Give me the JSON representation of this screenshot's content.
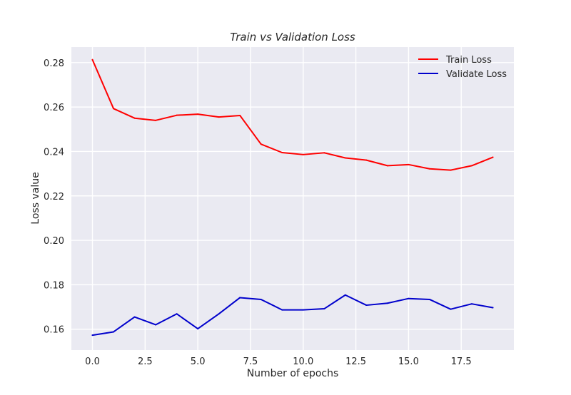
{
  "chart_data": {
    "type": "line",
    "title": "Train vs Validation Loss",
    "xlabel": "Number of epochs",
    "ylabel": "Loss value",
    "x": [
      0,
      1,
      2,
      3,
      4,
      5,
      6,
      7,
      8,
      9,
      10,
      11,
      12,
      13,
      14,
      15,
      16,
      17,
      18,
      19
    ],
    "series": [
      {
        "name": "Train Loss",
        "color": "#ff0000",
        "values": [
          0.2813,
          0.2593,
          0.255,
          0.254,
          0.2563,
          0.2568,
          0.2555,
          0.2562,
          0.2433,
          0.2395,
          0.2386,
          0.2394,
          0.2371,
          0.2361,
          0.2336,
          0.2341,
          0.2322,
          0.2316,
          0.2336,
          0.2374
        ]
      },
      {
        "name": "Validate Loss",
        "color": "#0000cc",
        "values": [
          0.1573,
          0.1588,
          0.1655,
          0.162,
          0.1669,
          0.1602,
          0.1669,
          0.1742,
          0.1734,
          0.1687,
          0.1687,
          0.1692,
          0.1754,
          0.1708,
          0.1717,
          0.1738,
          0.1734,
          0.169,
          0.1714,
          0.1697
        ]
      }
    ],
    "xlim": [
      -1.0,
      20.0
    ],
    "ylim": [
      0.1506,
      0.287
    ],
    "xticks": [
      0.0,
      2.5,
      5.0,
      7.5,
      10.0,
      12.5,
      15.0,
      17.5
    ],
    "xtick_labels": [
      "0.0",
      "2.5",
      "5.0",
      "7.5",
      "10.0",
      "12.5",
      "15.0",
      "17.5"
    ],
    "yticks": [
      0.16,
      0.18,
      0.2,
      0.22,
      0.24,
      0.26,
      0.28
    ],
    "ytick_labels": [
      "0.16",
      "0.18",
      "0.20",
      "0.22",
      "0.24",
      "0.26",
      "0.28"
    ],
    "grid": true,
    "legend_position": "top-right",
    "style": {
      "plot_background": "#eaeaf2",
      "grid_color": "#ffffff"
    }
  }
}
